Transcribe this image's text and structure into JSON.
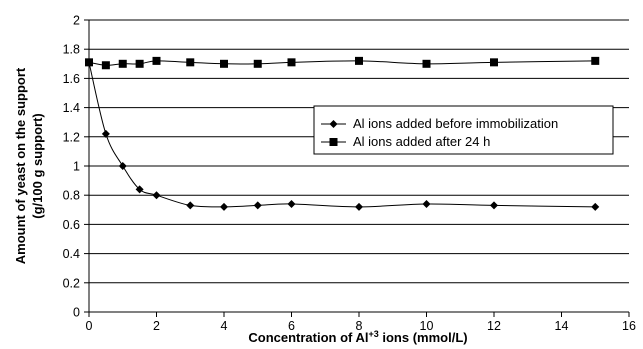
{
  "chart_data": {
    "type": "line",
    "xlabel_prefix": "Concentration of Al",
    "xlabel_sup": "+3",
    "xlabel_suffix": " ions (mmol/L)",
    "ylabel_line1": "Amount of yeast on the support",
    "ylabel_line2": "(g/100 g support)",
    "xlim": [
      0,
      16
    ],
    "ylim": [
      0,
      2
    ],
    "xticks": [
      "0",
      "2",
      "4",
      "6",
      "8",
      "10",
      "12",
      "14",
      "16"
    ],
    "yticks": [
      "0",
      "0.2",
      "0.4",
      "0.6",
      "0.8",
      "1",
      "1.2",
      "1.4",
      "1.6",
      "1.8",
      "2"
    ],
    "grid": "horizontal",
    "legend_position": "center-right",
    "series": [
      {
        "name": "Al ions added before immobilization",
        "marker": "diamond",
        "x": [
          0,
          0.5,
          1,
          1.5,
          2,
          3,
          4,
          5,
          6,
          8,
          10,
          12,
          15
        ],
        "y": [
          1.71,
          1.22,
          1.0,
          0.84,
          0.8,
          0.73,
          0.72,
          0.73,
          0.74,
          0.72,
          0.74,
          0.73,
          0.72
        ]
      },
      {
        "name": "Al ions added after 24 h",
        "marker": "square",
        "x": [
          0,
          0.5,
          1,
          1.5,
          2,
          3,
          4,
          5,
          6,
          8,
          10,
          12,
          15
        ],
        "y": [
          1.71,
          1.69,
          1.7,
          1.7,
          1.72,
          1.71,
          1.7,
          1.7,
          1.71,
          1.72,
          1.7,
          1.71,
          1.72
        ]
      }
    ],
    "colors": {
      "line": "#000000",
      "grid": "#000000",
      "background": "#ffffff"
    }
  }
}
